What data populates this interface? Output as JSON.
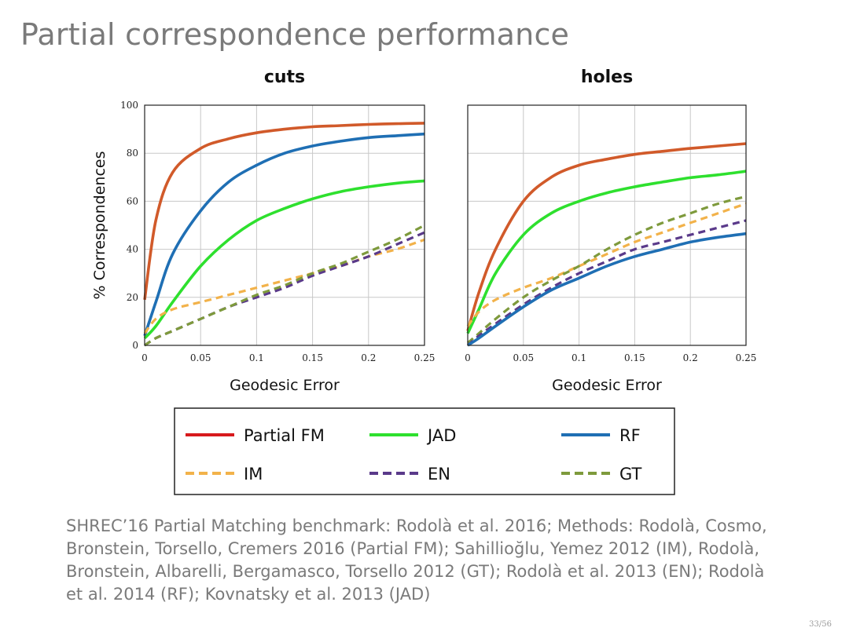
{
  "slide": {
    "title": "Partial correspondence performance",
    "caption": "SHREC’16 Partial Matching benchmark: Rodolà et al. 2016; Methods: Rodolà, Cosmo, Bronstein, Torsello, Cremers 2016 (Partial FM); Sahillioğlu, Yemez 2012 (IM), Rodolà, Bronstein, Albarelli, Bergamasco, Torsello 2012 (GT); Rodolà et al. 2013 (EN); Rodolà et al. 2014 (RF); Kovnatsky et al. 2013 (JAD)",
    "page_number": "33/56"
  },
  "legend": {
    "items": [
      {
        "label": "Partial FM",
        "color": "#d7191c",
        "dashed": false
      },
      {
        "label": "JAD",
        "color": "#2ee02e",
        "dashed": false
      },
      {
        "label": "RF",
        "color": "#1f6fb4",
        "dashed": false
      },
      {
        "label": "IM",
        "color": "#f2b24a",
        "dashed": true
      },
      {
        "label": "EN",
        "color": "#5a3a8a",
        "dashed": true
      },
      {
        "label": "GT",
        "color": "#7e9a3c",
        "dashed": true
      }
    ]
  },
  "chart_data": [
    {
      "type": "line",
      "title": "cuts",
      "xlabel": "Geodesic Error",
      "ylabel": "% Correspondences",
      "xlim": [
        0,
        0.25
      ],
      "ylim": [
        0,
        100
      ],
      "x_ticks": [
        "0",
        "0.05",
        "0.1",
        "0.15",
        "0.2",
        "0.25"
      ],
      "y_ticks": [
        "0",
        "20",
        "40",
        "60",
        "80",
        "100"
      ],
      "grid": true,
      "x": [
        0,
        0.01,
        0.025,
        0.05,
        0.075,
        0.1,
        0.125,
        0.15,
        0.175,
        0.2,
        0.225,
        0.25
      ],
      "series": [
        {
          "name": "Partial FM",
          "color": "#d15a2a",
          "dashed": false,
          "values": [
            19,
            52,
            72,
            82,
            86,
            88.5,
            90,
            91,
            91.5,
            92,
            92.3,
            92.5
          ]
        },
        {
          "name": "RF",
          "color": "#1f6fb4",
          "dashed": false,
          "values": [
            4,
            18,
            38,
            56,
            68,
            75,
            80,
            83,
            85,
            86.5,
            87.3,
            88
          ]
        },
        {
          "name": "JAD",
          "color": "#2ee02e",
          "dashed": false,
          "values": [
            3,
            8,
            18,
            33,
            44,
            52,
            57,
            61,
            64,
            66,
            67.5,
            68.5
          ]
        },
        {
          "name": "IM",
          "color": "#f2b24a",
          "dashed": true,
          "values": [
            5,
            11,
            15,
            18,
            21,
            24,
            27,
            30,
            33,
            37,
            40,
            44
          ]
        },
        {
          "name": "EN",
          "color": "#5a3a8a",
          "dashed": true,
          "values": [
            0,
            3,
            6,
            11,
            16,
            20,
            24,
            29,
            33,
            37,
            42,
            47
          ]
        },
        {
          "name": "GT",
          "color": "#7e9a3c",
          "dashed": true,
          "values": [
            0,
            3,
            6,
            11,
            16,
            21,
            25,
            30,
            34,
            39,
            44,
            50
          ]
        }
      ]
    },
    {
      "type": "line",
      "title": "holes",
      "xlabel": "Geodesic Error",
      "ylabel": "",
      "xlim": [
        0,
        0.25
      ],
      "ylim": [
        0,
        100
      ],
      "x_ticks": [
        "0",
        "0.05",
        "0.1",
        "0.15",
        "0.2",
        "0.25"
      ],
      "y_ticks": [],
      "grid": true,
      "x": [
        0,
        0.01,
        0.025,
        0.05,
        0.075,
        0.1,
        0.125,
        0.15,
        0.175,
        0.2,
        0.225,
        0.25
      ],
      "series": [
        {
          "name": "Partial FM",
          "color": "#d15a2a",
          "dashed": false,
          "values": [
            6,
            22,
            40,
            60,
            70,
            75,
            77.5,
            79.5,
            80.8,
            82,
            83,
            84
          ]
        },
        {
          "name": "JAD",
          "color": "#2ee02e",
          "dashed": false,
          "values": [
            5,
            15,
            30,
            46,
            55,
            60,
            63.5,
            66,
            68,
            69.8,
            71,
            72.5
          ]
        },
        {
          "name": "IM",
          "color": "#f2b24a",
          "dashed": true,
          "values": [
            8,
            14,
            19,
            24,
            28,
            33,
            38,
            43,
            47,
            51,
            55,
            59
          ]
        },
        {
          "name": "GT",
          "color": "#7e9a3c",
          "dashed": true,
          "values": [
            1,
            5,
            11,
            20,
            27,
            33,
            40,
            46,
            51,
            55,
            59,
            62
          ]
        },
        {
          "name": "EN",
          "color": "#5a3a8a",
          "dashed": true,
          "values": [
            0,
            4,
            9,
            17,
            24,
            30,
            35,
            40,
            43,
            46,
            49,
            52
          ]
        },
        {
          "name": "RF",
          "color": "#1f6fb4",
          "dashed": false,
          "values": [
            0,
            3,
            8,
            16,
            23,
            28,
            33,
            37,
            40,
            43,
            45,
            46.5
          ]
        }
      ]
    }
  ]
}
